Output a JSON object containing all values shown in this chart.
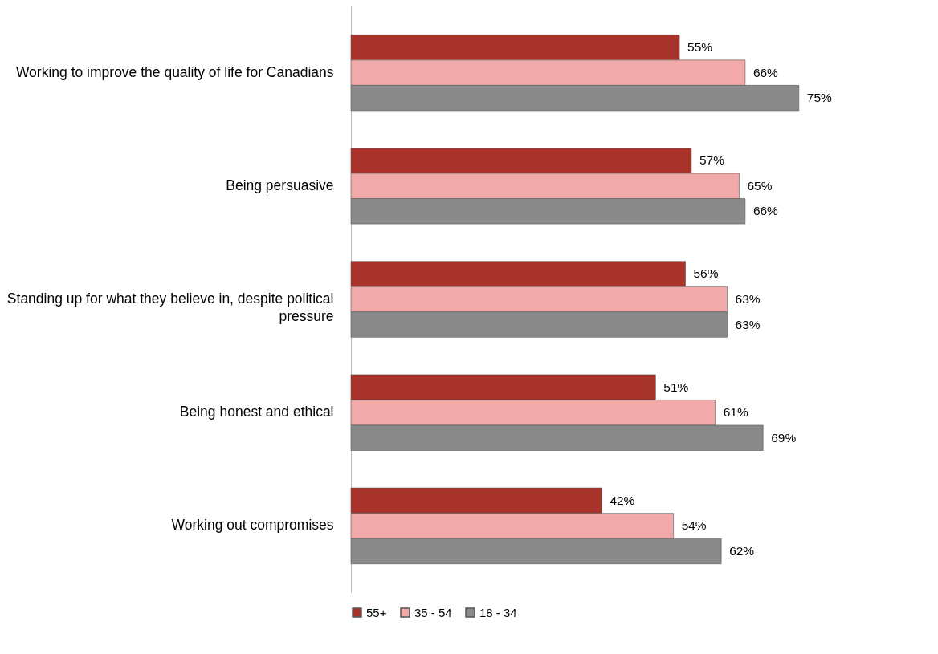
{
  "chart_data": {
    "type": "bar",
    "orientation": "horizontal",
    "categories": [
      "Working to improve the quality of life for Canadians",
      "Being persuasive",
      "Standing up for what they believe in, despite political pressure",
      "Being honest and ethical",
      "Working out compromises"
    ],
    "series": [
      {
        "name": "55+",
        "color": "#a8332b",
        "values": [
          55,
          57,
          56,
          51,
          42
        ],
        "value_labels": [
          "55%",
          "57%",
          "56%",
          "51%",
          "42%"
        ]
      },
      {
        "name": "35 - 54",
        "color": "#f2a9a9",
        "values": [
          66,
          65,
          63,
          61,
          54
        ],
        "value_labels": [
          "66%",
          "65%",
          "63%",
          "61%",
          "54%"
        ]
      },
      {
        "name": "18 - 34",
        "color": "#8a8a8a",
        "values": [
          75,
          66,
          63,
          69,
          62
        ],
        "value_labels": [
          "75%",
          "66%",
          "63%",
          "69%",
          "62%"
        ]
      }
    ],
    "legend": "bottom",
    "grid": false
  }
}
